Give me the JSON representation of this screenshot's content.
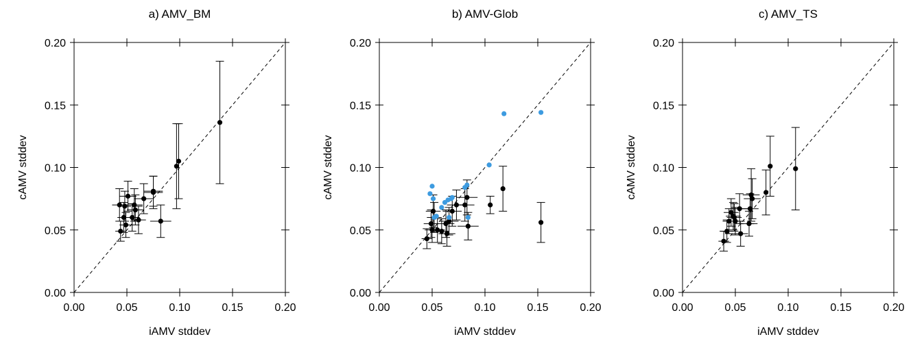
{
  "chart_data": [
    {
      "type": "scatter",
      "title": "a) AMV_BM",
      "xlabel": "iAMV stddev",
      "ylabel": "cAMV stddev",
      "xlim": [
        0,
        0.2
      ],
      "ylim": [
        0,
        0.2
      ],
      "xticks": [
        "0.00",
        "0.05",
        "0.10",
        "0.15",
        "0.20"
      ],
      "yticks": [
        "0.00",
        "0.05",
        "0.10",
        "0.15",
        "0.20"
      ],
      "reference_line": "y = x (dashed)",
      "series": [
        {
          "color": "#000000",
          "points": [
            {
              "x": 0.043,
              "y": 0.07,
              "xerr": 0.007,
              "yerr": 0.013
            },
            {
              "x": 0.048,
              "y": 0.069,
              "xerr": 0.006,
              "yerr": 0.012
            },
            {
              "x": 0.051,
              "y": 0.077,
              "xerr": 0.008,
              "yerr": 0.012
            },
            {
              "x": 0.047,
              "y": 0.06,
              "xerr": 0.006,
              "yerr": 0.012
            },
            {
              "x": 0.049,
              "y": 0.054,
              "xerr": 0.006,
              "yerr": 0.01
            },
            {
              "x": 0.044,
              "y": 0.049,
              "xerr": 0.005,
              "yerr": 0.008
            },
            {
              "x": 0.057,
              "y": 0.07,
              "xerr": 0.008,
              "yerr": 0.013
            },
            {
              "x": 0.058,
              "y": 0.066,
              "xerr": 0.008,
              "yerr": 0.012
            },
            {
              "x": 0.055,
              "y": 0.06,
              "xerr": 0.007,
              "yerr": 0.011
            },
            {
              "x": 0.061,
              "y": 0.058,
              "xerr": 0.007,
              "yerr": 0.011
            },
            {
              "x": 0.066,
              "y": 0.075,
              "xerr": 0.009,
              "yerr": 0.012
            },
            {
              "x": 0.075,
              "y": 0.08,
              "xerr": 0.009,
              "yerr": 0.013
            },
            {
              "x": 0.075,
              "y": 0.081,
              "xerr": 0.009,
              "yerr": 0.012
            },
            {
              "x": 0.082,
              "y": 0.057,
              "xerr": 0.01,
              "yerr": 0.013
            },
            {
              "x": 0.097,
              "y": 0.101,
              "xerr": 0.0,
              "yerr": 0.034
            },
            {
              "x": 0.099,
              "y": 0.105,
              "xerr": 0.0,
              "yerr": 0.03
            },
            {
              "x": 0.138,
              "y": 0.136,
              "xerr": 0.0,
              "yerr": 0.049
            }
          ]
        }
      ]
    },
    {
      "type": "scatter",
      "title": "b) AMV-Glob",
      "xlabel": "iAMV stddev",
      "ylabel": "cAMV stddev",
      "xlim": [
        0,
        0.2
      ],
      "ylim": [
        0,
        0.2
      ],
      "xticks": [
        "0.00",
        "0.05",
        "0.10",
        "0.15",
        "0.20"
      ],
      "yticks": [
        "0.00",
        "0.05",
        "0.10",
        "0.15",
        "0.20"
      ],
      "reference_line": "y = x (dashed)",
      "series": [
        {
          "color": "#000000",
          "points": [
            {
              "x": 0.045,
              "y": 0.043,
              "xerr": 0.005,
              "yerr": 0.008
            },
            {
              "x": 0.049,
              "y": 0.055,
              "xerr": 0.007,
              "yerr": 0.011
            },
            {
              "x": 0.05,
              "y": 0.05,
              "xerr": 0.007,
              "yerr": 0.01
            },
            {
              "x": 0.051,
              "y": 0.065,
              "xerr": 0.007,
              "yerr": 0.013
            },
            {
              "x": 0.052,
              "y": 0.06,
              "xerr": 0.007,
              "yerr": 0.012
            },
            {
              "x": 0.055,
              "y": 0.05,
              "xerr": 0.007,
              "yerr": 0.01
            },
            {
              "x": 0.059,
              "y": 0.049,
              "xerr": 0.007,
              "yerr": 0.01
            },
            {
              "x": 0.063,
              "y": 0.055,
              "xerr": 0.008,
              "yerr": 0.011
            },
            {
              "x": 0.064,
              "y": 0.047,
              "xerr": 0.008,
              "yerr": 0.01
            },
            {
              "x": 0.066,
              "y": 0.057,
              "xerr": 0.009,
              "yerr": 0.011
            },
            {
              "x": 0.069,
              "y": 0.065,
              "xerr": 0.009,
              "yerr": 0.012
            },
            {
              "x": 0.073,
              "y": 0.07,
              "xerr": 0.009,
              "yerr": 0.012
            },
            {
              "x": 0.081,
              "y": 0.07,
              "xerr": 0.009,
              "yerr": 0.013
            },
            {
              "x": 0.083,
              "y": 0.076,
              "xerr": 0.01,
              "yerr": 0.014
            },
            {
              "x": 0.084,
              "y": 0.053,
              "xerr": 0.01,
              "yerr": 0.011
            },
            {
              "x": 0.105,
              "y": 0.07,
              "xerr": 0.0,
              "yerr": 0.007
            },
            {
              "x": 0.117,
              "y": 0.083,
              "xerr": 0.0,
              "yerr": 0.018
            },
            {
              "x": 0.153,
              "y": 0.056,
              "xerr": 0.0,
              "yerr": 0.016
            }
          ]
        },
        {
          "color": "#3d9be0",
          "points": [
            {
              "x": 0.048,
              "y": 0.079
            },
            {
              "x": 0.05,
              "y": 0.085
            },
            {
              "x": 0.051,
              "y": 0.075
            },
            {
              "x": 0.052,
              "y": 0.06
            },
            {
              "x": 0.054,
              "y": 0.061
            },
            {
              "x": 0.059,
              "y": 0.068
            },
            {
              "x": 0.062,
              "y": 0.072
            },
            {
              "x": 0.065,
              "y": 0.074
            },
            {
              "x": 0.066,
              "y": 0.06
            },
            {
              "x": 0.068,
              "y": 0.075
            },
            {
              "x": 0.069,
              "y": 0.076
            },
            {
              "x": 0.081,
              "y": 0.084
            },
            {
              "x": 0.083,
              "y": 0.086
            },
            {
              "x": 0.084,
              "y": 0.06
            },
            {
              "x": 0.104,
              "y": 0.102
            },
            {
              "x": 0.118,
              "y": 0.143
            },
            {
              "x": 0.153,
              "y": 0.144
            }
          ]
        }
      ]
    },
    {
      "type": "scatter",
      "title": "c) AMV_TS",
      "xlabel": "iAMV stddev",
      "ylabel": "cAMV stddev",
      "xlim": [
        0,
        0.2
      ],
      "ylim": [
        0,
        0.2
      ],
      "xticks": [
        "0.00",
        "0.05",
        "0.10",
        "0.15",
        "0.20"
      ],
      "yticks": [
        "0.00",
        "0.05",
        "0.10",
        "0.15",
        "0.20"
      ],
      "reference_line": "y = x (dashed)",
      "series": [
        {
          "color": "#000000",
          "points": [
            {
              "x": 0.039,
              "y": 0.041,
              "xerr": 0.005,
              "yerr": 0.008
            },
            {
              "x": 0.042,
              "y": 0.049,
              "xerr": 0.006,
              "yerr": 0.009
            },
            {
              "x": 0.044,
              "y": 0.057,
              "xerr": 0.006,
              "yerr": 0.01
            },
            {
              "x": 0.046,
              "y": 0.064,
              "xerr": 0.007,
              "yerr": 0.011
            },
            {
              "x": 0.048,
              "y": 0.061,
              "xerr": 0.007,
              "yerr": 0.011
            },
            {
              "x": 0.049,
              "y": 0.06,
              "xerr": 0.007,
              "yerr": 0.011
            },
            {
              "x": 0.05,
              "y": 0.057,
              "xerr": 0.007,
              "yerr": 0.011
            },
            {
              "x": 0.054,
              "y": 0.067,
              "xerr": 0.008,
              "yerr": 0.012
            },
            {
              "x": 0.055,
              "y": 0.047,
              "xerr": 0.007,
              "yerr": 0.01
            },
            {
              "x": 0.063,
              "y": 0.055,
              "xerr": 0.008,
              "yerr": 0.01
            },
            {
              "x": 0.064,
              "y": 0.067,
              "xerr": 0.008,
              "yerr": 0.012
            },
            {
              "x": 0.065,
              "y": 0.078,
              "xerr": 0.008,
              "yerr": 0.021
            },
            {
              "x": 0.066,
              "y": 0.075,
              "xerr": 0.008,
              "yerr": 0.016
            },
            {
              "x": 0.079,
              "y": 0.08,
              "xerr": 0.0,
              "yerr": 0.018
            },
            {
              "x": 0.083,
              "y": 0.101,
              "xerr": 0.0,
              "yerr": 0.024
            },
            {
              "x": 0.107,
              "y": 0.099,
              "xerr": 0.0,
              "yerr": 0.033
            }
          ]
        }
      ]
    }
  ]
}
